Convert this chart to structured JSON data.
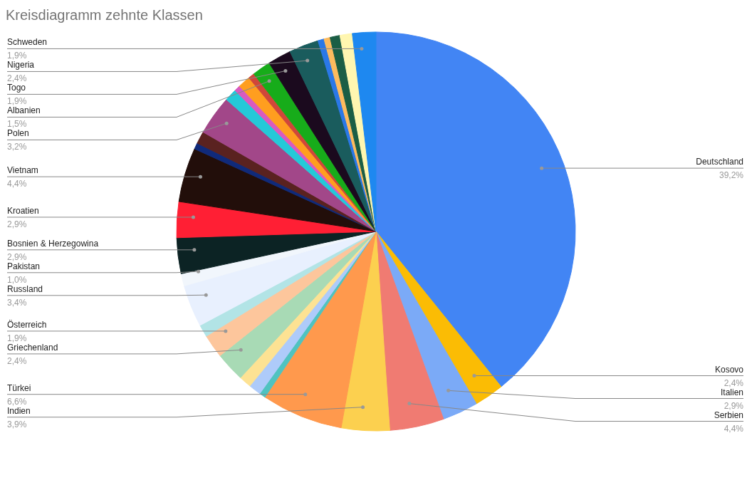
{
  "chart_data": {
    "type": "pie",
    "title": "Kreisdiagramm zehnte Klassen",
    "categories": [
      "Deutschland",
      "Kosovo",
      "Italien",
      "Serbien",
      "Indien",
      "Türkei",
      null,
      null,
      null,
      "Griechenland",
      "Österreich",
      null,
      "Russland",
      "Pakistan",
      "Bosnien & Herzegowina",
      "Kroatien",
      "Vietnam",
      null,
      null,
      "Polen",
      null,
      null,
      null,
      null,
      "Albanien",
      "Togo",
      "Nigeria",
      null,
      null,
      null,
      null,
      "Schweden"
    ],
    "values": [
      39.2,
      2.4,
      2.9,
      4.4,
      3.9,
      6.6,
      0.5,
      1.0,
      1.0,
      2.4,
      1.9,
      1.0,
      3.4,
      1.0,
      2.9,
      2.9,
      4.4,
      0.5,
      1.0,
      3.2,
      1.0,
      0.5,
      1.0,
      0.5,
      1.5,
      1.9,
      2.4,
      0.5,
      0.5,
      0.8,
      1.0,
      1.9
    ],
    "value_labels": [
      "39,2%",
      "2,4%",
      "2,9%",
      "4,4%",
      "3,9%",
      "6,6%",
      null,
      null,
      null,
      "2,4%",
      "1,9%",
      null,
      "3,4%",
      "1,0%",
      "2,9%",
      "2,9%",
      "4,4%",
      null,
      null,
      "3,2%",
      null,
      null,
      null,
      null,
      "1,5%",
      "1,9%",
      "2,4%",
      null,
      null,
      null,
      null,
      "1,9%"
    ],
    "colors": [
      "#4285f4",
      "#fbbc04",
      "#7baaf7",
      "#f07b72",
      "#fcd04f",
      "#ff994d",
      "#4fc3c0",
      "#aecbfa",
      "#fde293",
      "#a8dab5",
      "#fdc69c",
      "#b2e4e6",
      "#e8f0fe",
      "#f1f6fc",
      "#0c2324",
      "#ff1f34",
      "#220e0a",
      "#102a7a",
      "#5a2220",
      "#a24789",
      "#24c9d8",
      "#d85bc0",
      "#ff9e1f",
      "#d0473a",
      "#17ac1a",
      "#1b0a1e",
      "#1a5c5d",
      "#2a78e8",
      "#fdbb5e",
      "#1b5e45",
      "#fff6b0",
      "#1e88f0"
    ],
    "legend": false
  }
}
